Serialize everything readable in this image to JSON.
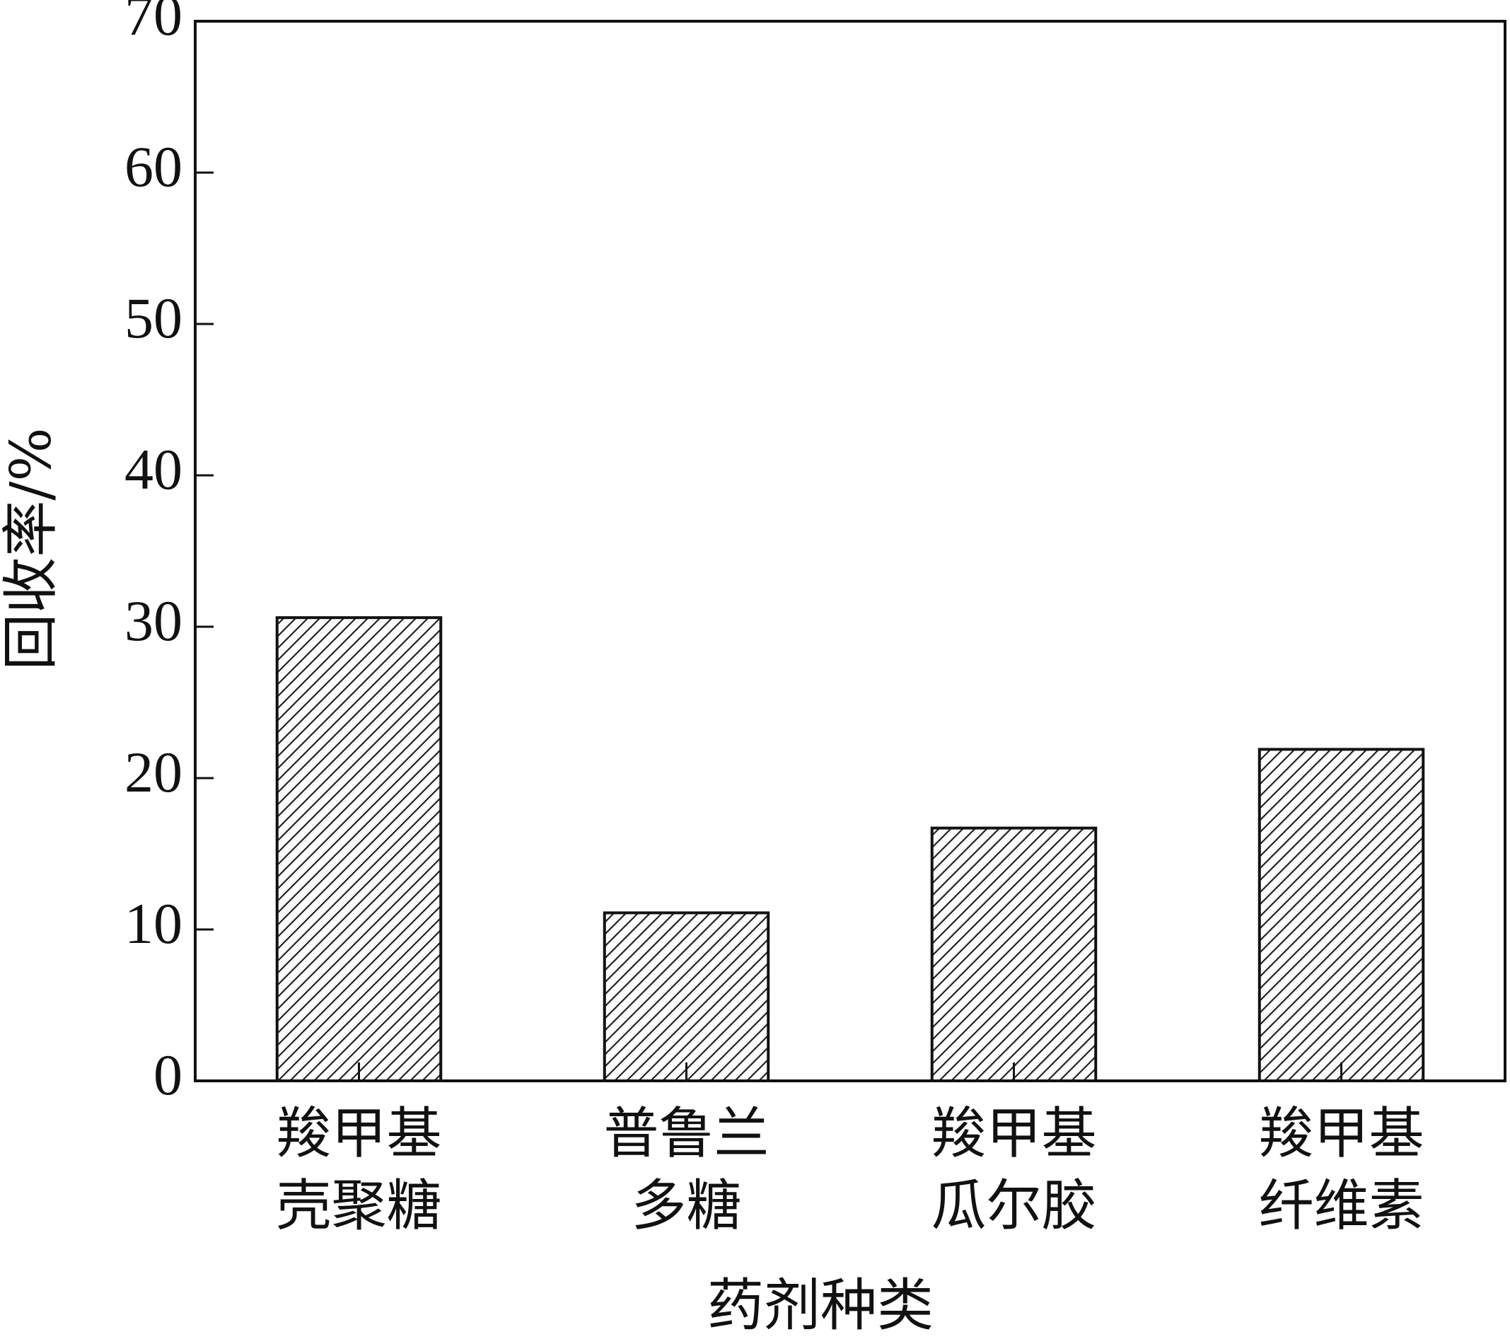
{
  "chart_data": {
    "type": "bar",
    "x_label": "药剂种类",
    "y_label": "回收率/%",
    "categories": [
      "羧甲基\n壳聚糖",
      "普鲁兰\n多糖",
      "羧甲基\n瓜尔胶",
      "羧甲基\n纤维素"
    ],
    "values": [
      30.6,
      11.1,
      16.7,
      21.9
    ],
    "color": "#ffffff",
    "hatch": "/",
    "ylim": [
      0,
      70
    ],
    "yticks": [
      0,
      10,
      20,
      30,
      40,
      50,
      60,
      70
    ],
    "grid": false
  }
}
